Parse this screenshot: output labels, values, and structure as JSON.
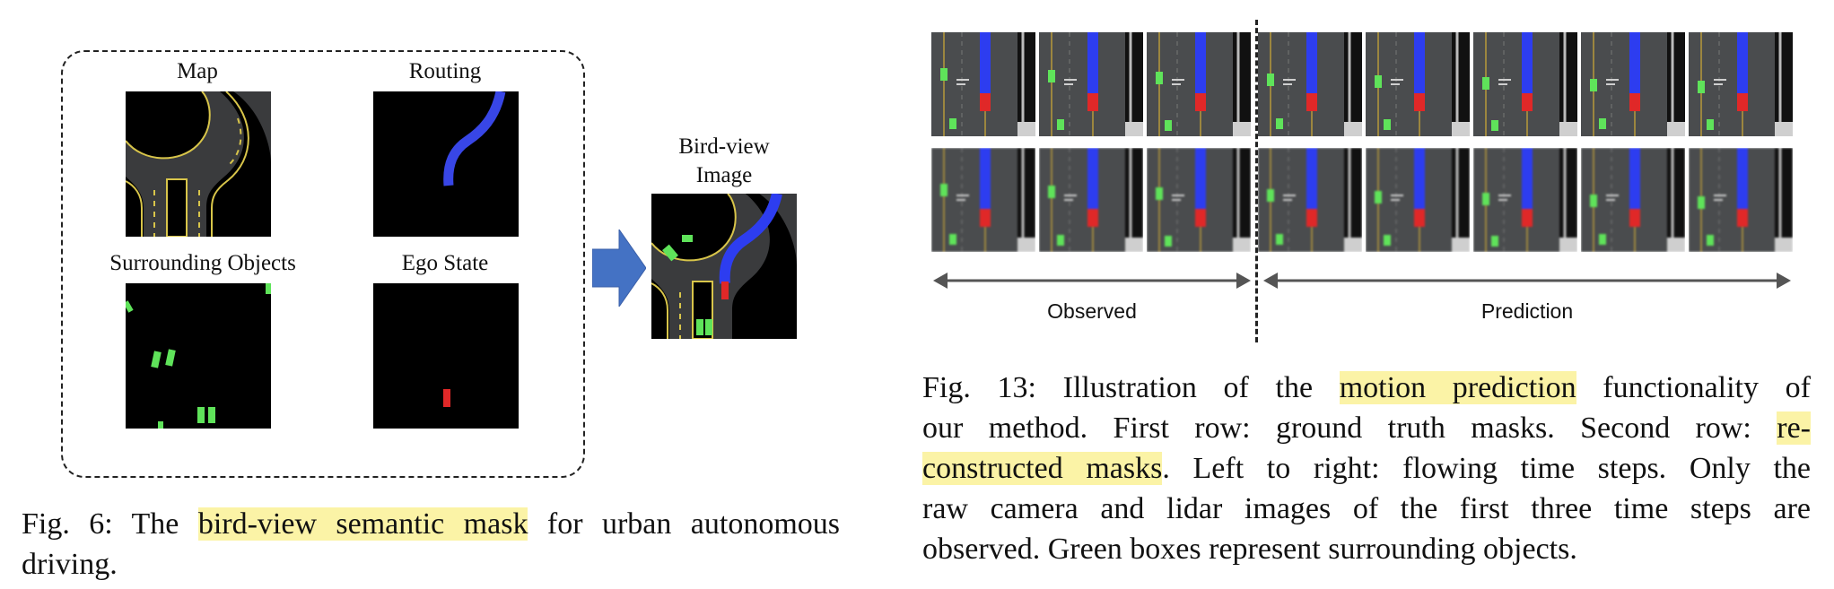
{
  "fig6": {
    "panels": {
      "map": "Map",
      "routing": "Routing",
      "objects": "Surrounding Objects",
      "ego": "Ego State"
    },
    "output_label_line1": "Bird-view",
    "output_label_line2": "Image",
    "caption": {
      "prefix": "Fig. 6: The ",
      "highlight": "bird-view semantic mask",
      "suffix": " for urban autonomous",
      "line2": "driving."
    }
  },
  "fig13": {
    "observed_label": "Observed",
    "prediction_label": "Prediction",
    "frames_per_row": 8,
    "observed_frames": 3,
    "rows": [
      "ground truth masks",
      "reconstructed masks"
    ],
    "caption": {
      "l1_a": "Fig. 13: Illustration of the ",
      "l1_hl": "motion prediction",
      "l1_b": " functionality of",
      "l2_a": "our method. First row: ground truth masks. Second row: ",
      "l2_hl": "re-",
      "l3_hl": "constructed masks",
      "l3_b": ". Left to right: flowing time steps. Only the",
      "l4": "raw camera and lidar images of the first three time steps are",
      "l5": "observed. Green boxes represent surrounding objects."
    }
  },
  "colors": {
    "road": "#3a3b3d",
    "lane_edge": "#d8c54a",
    "route": "#2d3df0",
    "ego": "#e02828",
    "objects": "#5fe35a",
    "arrow": "#4472c4",
    "highlight": "#fbf3a6"
  }
}
